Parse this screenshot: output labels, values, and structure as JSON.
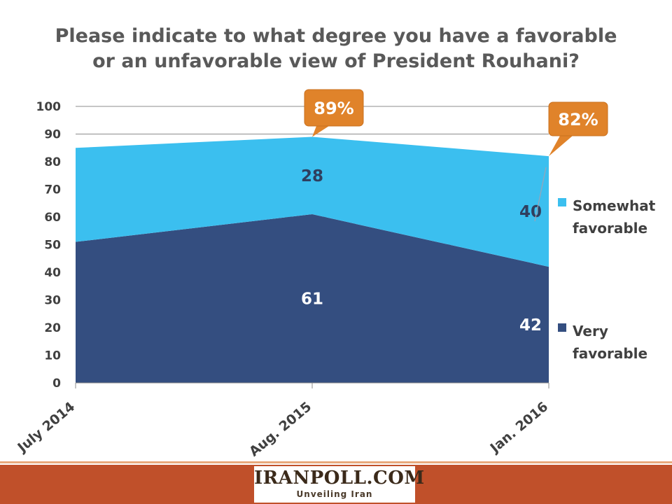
{
  "chart_data": {
    "type": "area",
    "stacked": true,
    "title_lines": [
      "Please indicate to what degree you have a favorable",
      "or an unfavorable view of President Rouhani?"
    ],
    "categories": [
      "July 2014",
      "Aug. 2015",
      "Jan. 2016"
    ],
    "series": [
      {
        "name": "Very favorable",
        "legend_lines": [
          "Very",
          "favorable"
        ],
        "values": [
          51,
          61,
          42
        ],
        "color": "#344e80",
        "labels": [
          "",
          "61",
          "42"
        ]
      },
      {
        "name": "Somewhat favorable",
        "legend_lines": [
          "Somewhat",
          "favorable"
        ],
        "values": [
          34,
          28,
          40
        ],
        "color": "#3bbfef",
        "labels": [
          "",
          "28",
          "40"
        ]
      }
    ],
    "ylim": [
      0,
      100
    ],
    "yticks": [
      0,
      10,
      20,
      30,
      40,
      50,
      60,
      70,
      80,
      90,
      100
    ],
    "grid": true,
    "legend_placement": "right",
    "callouts": [
      {
        "category": "Aug. 2015",
        "value": 89,
        "text": "89%"
      },
      {
        "category": "Jan. 2016",
        "value": 82,
        "text": "82%"
      }
    ],
    "callout_color": "#e0832a"
  },
  "footer": {
    "logo_name": "IRANPOLL.COM",
    "logo_tagline": "Unveiling Iran",
    "bar_color": "#c0502a"
  }
}
